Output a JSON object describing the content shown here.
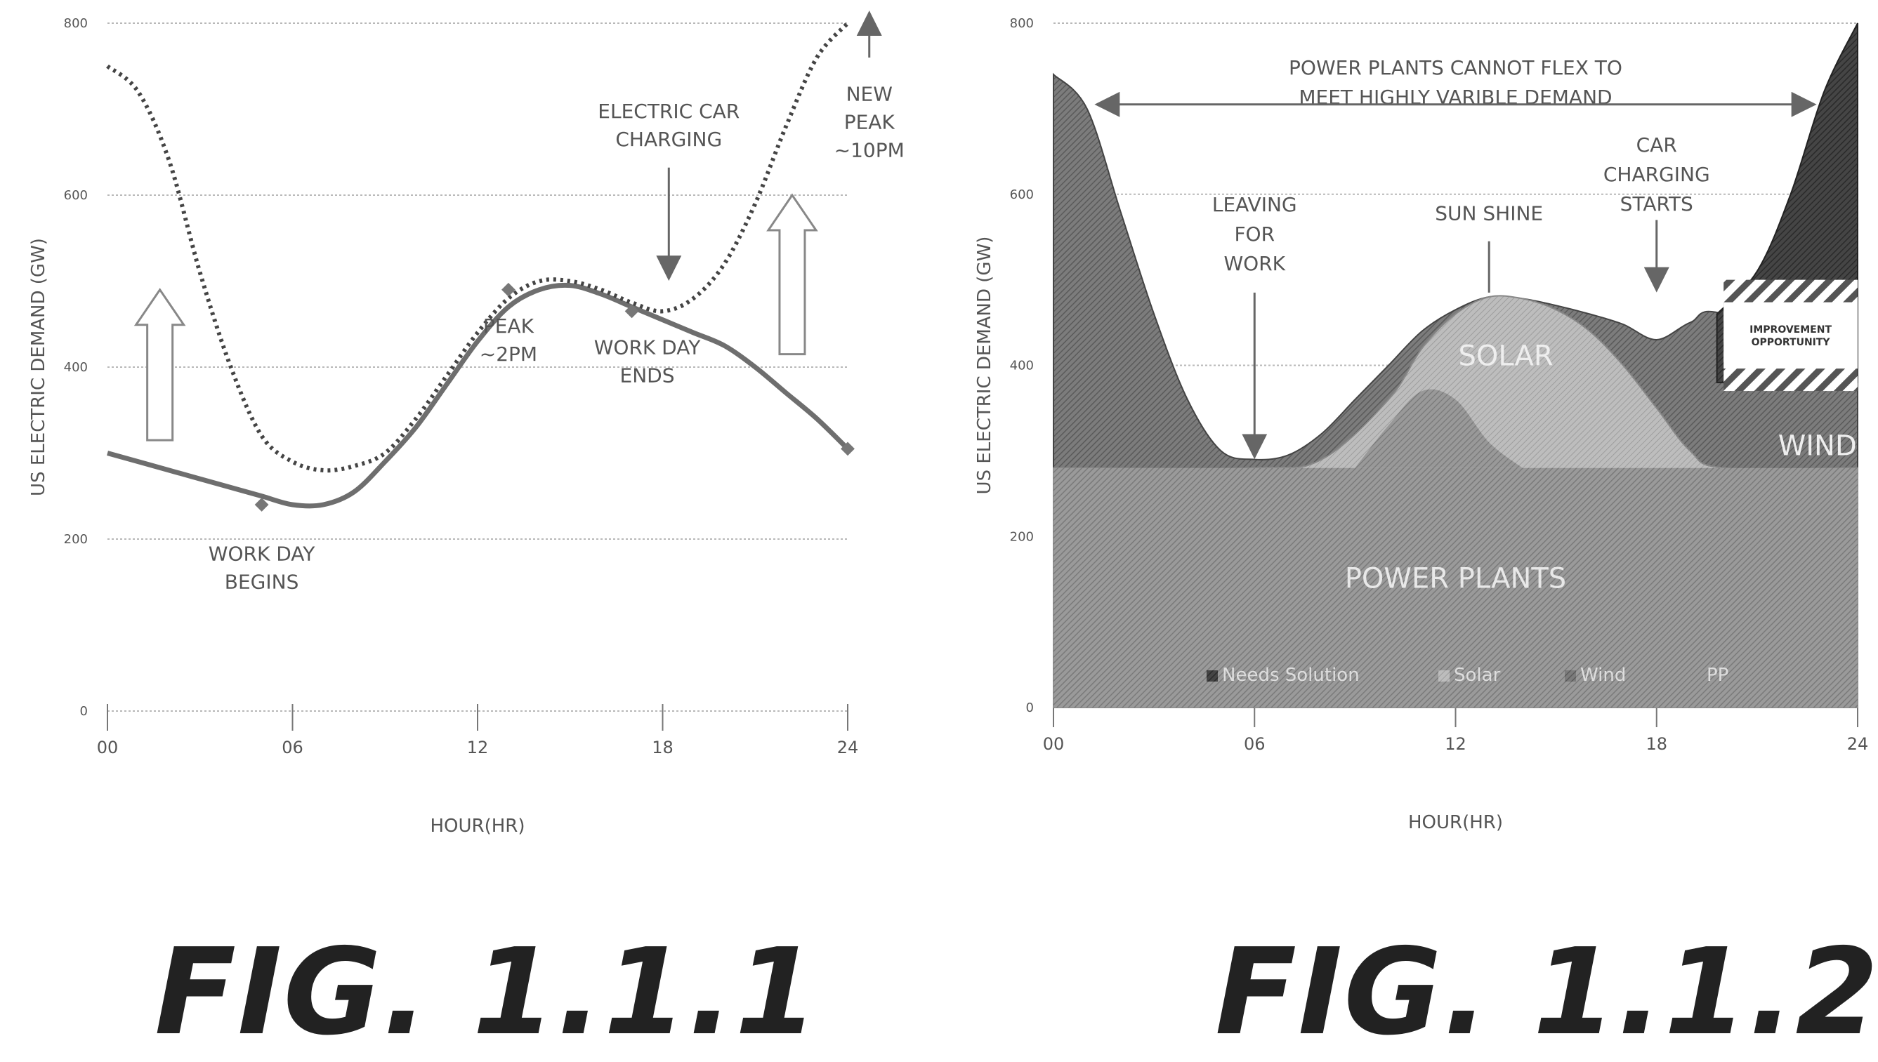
{
  "figures": [
    {
      "caption": "FIG. 1.1.1"
    },
    {
      "caption": "FIG. 1.1.2"
    }
  ],
  "colors": {
    "grid": "#b8b8b8",
    "line": "#6e6e6e",
    "dotted": "#444444",
    "powerplants": "#8c8c8c",
    "solar": "#b0b0b0",
    "wind": "#707070",
    "needs": "#3c3c3c",
    "text": "#555555"
  },
  "chart_data": [
    {
      "type": "line",
      "title": "",
      "xlabel": "HOUR(HR)",
      "ylabel": "US ELECTRIC DEMAND (GW)",
      "x_ticks": [
        "00",
        "06",
        "12",
        "18",
        "24"
      ],
      "y_ticks": [
        "0",
        "200",
        "400",
        "600",
        "800"
      ],
      "xlim": [
        0,
        24
      ],
      "ylim": [
        0,
        800
      ],
      "grid": true,
      "series": [
        {
          "style": "solid",
          "x": [
            0,
            2,
            4,
            5,
            6,
            7,
            8,
            9,
            10,
            11,
            12,
            13,
            14,
            15,
            16,
            17,
            18,
            19,
            20,
            21,
            22,
            23,
            24
          ],
          "y": [
            300,
            280,
            260,
            250,
            240,
            240,
            255,
            290,
            330,
            380,
            430,
            470,
            490,
            495,
            485,
            470,
            455,
            440,
            425,
            400,
            370,
            340,
            305
          ]
        },
        {
          "style": "dotted",
          "x": [
            0,
            1,
            2,
            3,
            4,
            5,
            6,
            7,
            8,
            9,
            10,
            11,
            12,
            13,
            14,
            15,
            16,
            17,
            18,
            19,
            20,
            21,
            22,
            23,
            24
          ],
          "y": [
            750,
            720,
            640,
            510,
            400,
            320,
            290,
            280,
            285,
            300,
            340,
            390,
            440,
            480,
            500,
            500,
            490,
            475,
            465,
            480,
            520,
            590,
            680,
            760,
            800
          ]
        }
      ],
      "annotations": [
        {
          "lines": [
            "WORK DAY",
            "BEGINS"
          ],
          "x": 5,
          "y": 175
        },
        {
          "lines": [
            "PEAK",
            "~2PM"
          ],
          "x": 13,
          "y": 440
        },
        {
          "lines": [
            "WORK DAY",
            "ENDS"
          ],
          "x": 17.5,
          "y": 415
        },
        {
          "lines": [
            "ELECTRIC CAR",
            "CHARGING"
          ],
          "x": 18.2,
          "y": 690
        },
        {
          "lines": [
            "NEW",
            "PEAK",
            "~10PM"
          ],
          "x": 24.7,
          "y": 710
        }
      ]
    },
    {
      "type": "area",
      "title": "",
      "xlabel": "HOUR(HR)",
      "ylabel": "US ELECTRIC DEMAND (GW)",
      "x_ticks": [
        "00",
        "06",
        "12",
        "18",
        "24"
      ],
      "y_ticks": [
        "0",
        "200",
        "400",
        "600",
        "800"
      ],
      "xlim": [
        0,
        24
      ],
      "ylim": [
        0,
        800
      ],
      "grid": true,
      "legend": {
        "placement": "bottom",
        "entries": [
          "Needs Solution",
          "Solar",
          "Wind",
          "PP"
        ]
      },
      "series": [
        {
          "name": "PP",
          "label": "POWER PLANTS",
          "x": [
            0,
            24
          ],
          "y": [
            280,
            280
          ]
        },
        {
          "name": "Solar",
          "label": "SOLAR",
          "x": [
            0,
            6,
            8,
            10,
            11,
            12,
            13,
            14,
            15,
            16,
            17,
            18,
            19,
            20,
            24
          ],
          "y": [
            280,
            280,
            290,
            360,
            420,
            460,
            480,
            478,
            465,
            440,
            400,
            350,
            300,
            280,
            280
          ]
        },
        {
          "name": "Wind",
          "label": "WIND",
          "x": [
            0,
            1,
            2,
            3,
            4,
            5,
            6,
            7,
            8,
            9,
            10,
            11,
            12,
            13,
            14,
            15,
            16,
            17,
            18,
            19,
            20,
            24
          ],
          "y": [
            740,
            700,
            580,
            460,
            360,
            300,
            290,
            295,
            320,
            360,
            400,
            440,
            465,
            480,
            478,
            470,
            460,
            448,
            430,
            450,
            460,
            395
          ]
        },
        {
          "name": "Needs Solution",
          "x": [
            19.8,
            21,
            22,
            23,
            24
          ],
          "y": [
            460,
            510,
            600,
            720,
            800
          ]
        }
      ],
      "bands": [
        {
          "label": "IMPROVEMENT OPPORTUNITY",
          "x": [
            20,
            24
          ],
          "y": [
            370,
            500
          ]
        }
      ],
      "annotations": [
        {
          "lines": [
            "POWER PLANTS CANNOT FLEX TO",
            "MEET HIGHLY VARIBLE DEMAND"
          ],
          "x": 12,
          "y": 740
        },
        {
          "lines": [
            "LEAVING",
            "FOR",
            "WORK"
          ],
          "x": 6,
          "y": 580
        },
        {
          "lines": [
            "SUN SHINE"
          ],
          "x": 13,
          "y": 570
        },
        {
          "lines": [
            "CAR",
            "CHARGING",
            "STARTS"
          ],
          "x": 18,
          "y": 650
        }
      ]
    }
  ]
}
